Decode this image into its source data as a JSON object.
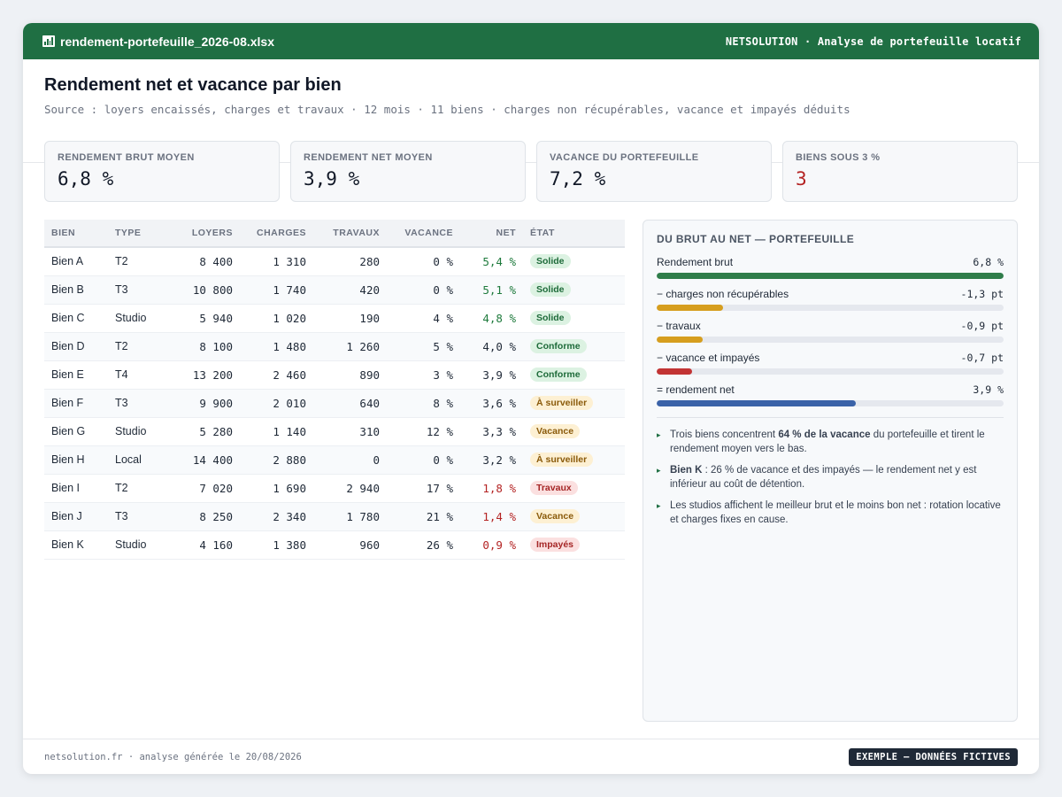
{
  "titlebar": {
    "filename": "rendement-portefeuille_2026-08.xlsx",
    "app_label": "NETSOLUTION · Analyse de portefeuille locatif",
    "icon": "spreadsheet-icon"
  },
  "header": {
    "title": "Rendement net et vacance par bien",
    "subtitle": "Source : loyers encaissés, charges et travaux · 12 mois · 11 biens · charges non récupérables, vacance et impayés déduits"
  },
  "kpis": [
    {
      "label": "RENDEMENT BRUT MOYEN",
      "value": "6,8 %"
    },
    {
      "label": "RENDEMENT NET MOYEN",
      "value": "3,9 %"
    },
    {
      "label": "VACANCE DU PORTEFEUILLE",
      "value": "7,2 %"
    },
    {
      "label": "BIENS SOUS 3 %",
      "value": "3"
    }
  ],
  "table": {
    "headers": [
      "BIEN",
      "TYPE",
      "LOYERS",
      "CHARGES",
      "TRAVAUX",
      "VACANCE",
      "NET",
      "ÉTAT"
    ],
    "rows": [
      {
        "bien": "Bien A",
        "type": "T2",
        "loyers": "8 400",
        "charges": "1 310",
        "travaux": "280",
        "vacance": "0 %",
        "net": "5,4 %",
        "etat": "Solide"
      },
      {
        "bien": "Bien B",
        "type": "T3",
        "loyers": "10 800",
        "charges": "1 740",
        "travaux": "420",
        "vacance": "0 %",
        "net": "5,1 %",
        "etat": "Solide"
      },
      {
        "bien": "Bien C",
        "type": "Studio",
        "loyers": "5 940",
        "charges": "1 020",
        "travaux": "190",
        "vacance": "4 %",
        "net": "4,8 %",
        "etat": "Solide"
      },
      {
        "bien": "Bien D",
        "type": "T2",
        "loyers": "8 100",
        "charges": "1 480",
        "travaux": "1 260",
        "vacance": "5 %",
        "net": "4,0 %",
        "etat": "Conforme"
      },
      {
        "bien": "Bien E",
        "type": "T4",
        "loyers": "13 200",
        "charges": "2 460",
        "travaux": "890",
        "vacance": "3 %",
        "net": "3,9 %",
        "etat": "Conforme"
      },
      {
        "bien": "Bien F",
        "type": "T3",
        "loyers": "9 900",
        "charges": "2 010",
        "travaux": "640",
        "vacance": "8 %",
        "net": "3,6 %",
        "etat": "À surveiller"
      },
      {
        "bien": "Bien G",
        "type": "Studio",
        "loyers": "5 280",
        "charges": "1 140",
        "travaux": "310",
        "vacance": "12 %",
        "net": "3,3 %",
        "etat": "Vacance"
      },
      {
        "bien": "Bien H",
        "type": "Local",
        "loyers": "14 400",
        "charges": "2 880",
        "travaux": "0",
        "vacance": "0 %",
        "net": "3,2 %",
        "etat": "À surveiller"
      },
      {
        "bien": "Bien I",
        "type": "T2",
        "loyers": "7 020",
        "charges": "1 690",
        "travaux": "2 940",
        "vacance": "17 %",
        "net": "1,8 %",
        "etat": "Travaux"
      },
      {
        "bien": "Bien J",
        "type": "T3",
        "loyers": "8 250",
        "charges": "2 340",
        "travaux": "1 780",
        "vacance": "21 %",
        "net": "1,4 %",
        "etat": "Vacance"
      },
      {
        "bien": "Bien K",
        "type": "Studio",
        "loyers": "4 160",
        "charges": "1 380",
        "travaux": "960",
        "vacance": "26 %",
        "net": "0,9 %",
        "etat": "Impayés"
      }
    ]
  },
  "panel": {
    "title": "DU BRUT AU NET — PORTEFEUILLE",
    "bars": [
      {
        "label": "Rendement brut",
        "value": "6,8 %",
        "level": 6.8,
        "color": "#2f7d4a"
      },
      {
        "label": "− charges non récupérables",
        "value": "-1,3 pt",
        "level": 1.3,
        "color": "#d69e1e"
      },
      {
        "label": "− travaux",
        "value": "-0,9 pt",
        "level": 0.9,
        "color": "#d69e1e"
      },
      {
        "label": "− vacance et impayés",
        "value": "-0,7 pt",
        "level": 0.7,
        "color": "#c23434"
      },
      {
        "label": "= rendement net",
        "value": "3,9 %",
        "level": 3.9,
        "color": "#3a62a8"
      }
    ],
    "notes": [
      {
        "pre": "Trois biens concentrent ",
        "bold": "64 % de la vacance",
        "post": " du portefeuille et tirent le rendement moyen vers le bas."
      },
      {
        "pre": "",
        "bold": "Bien K",
        "post": " : 26 % de vacance et des impayés — le rendement net y est inférieur au coût de détention."
      },
      {
        "pre": "Les studios affichent le meilleur brut et le moins bon net : rotation locative et charges fixes en cause.",
        "bold": "",
        "post": ""
      }
    ]
  },
  "footer": {
    "text": "netsolution.fr · analyse générée le 20/08/2026",
    "badge": "EXEMPLE — DONNÉES FICTIVES"
  }
}
